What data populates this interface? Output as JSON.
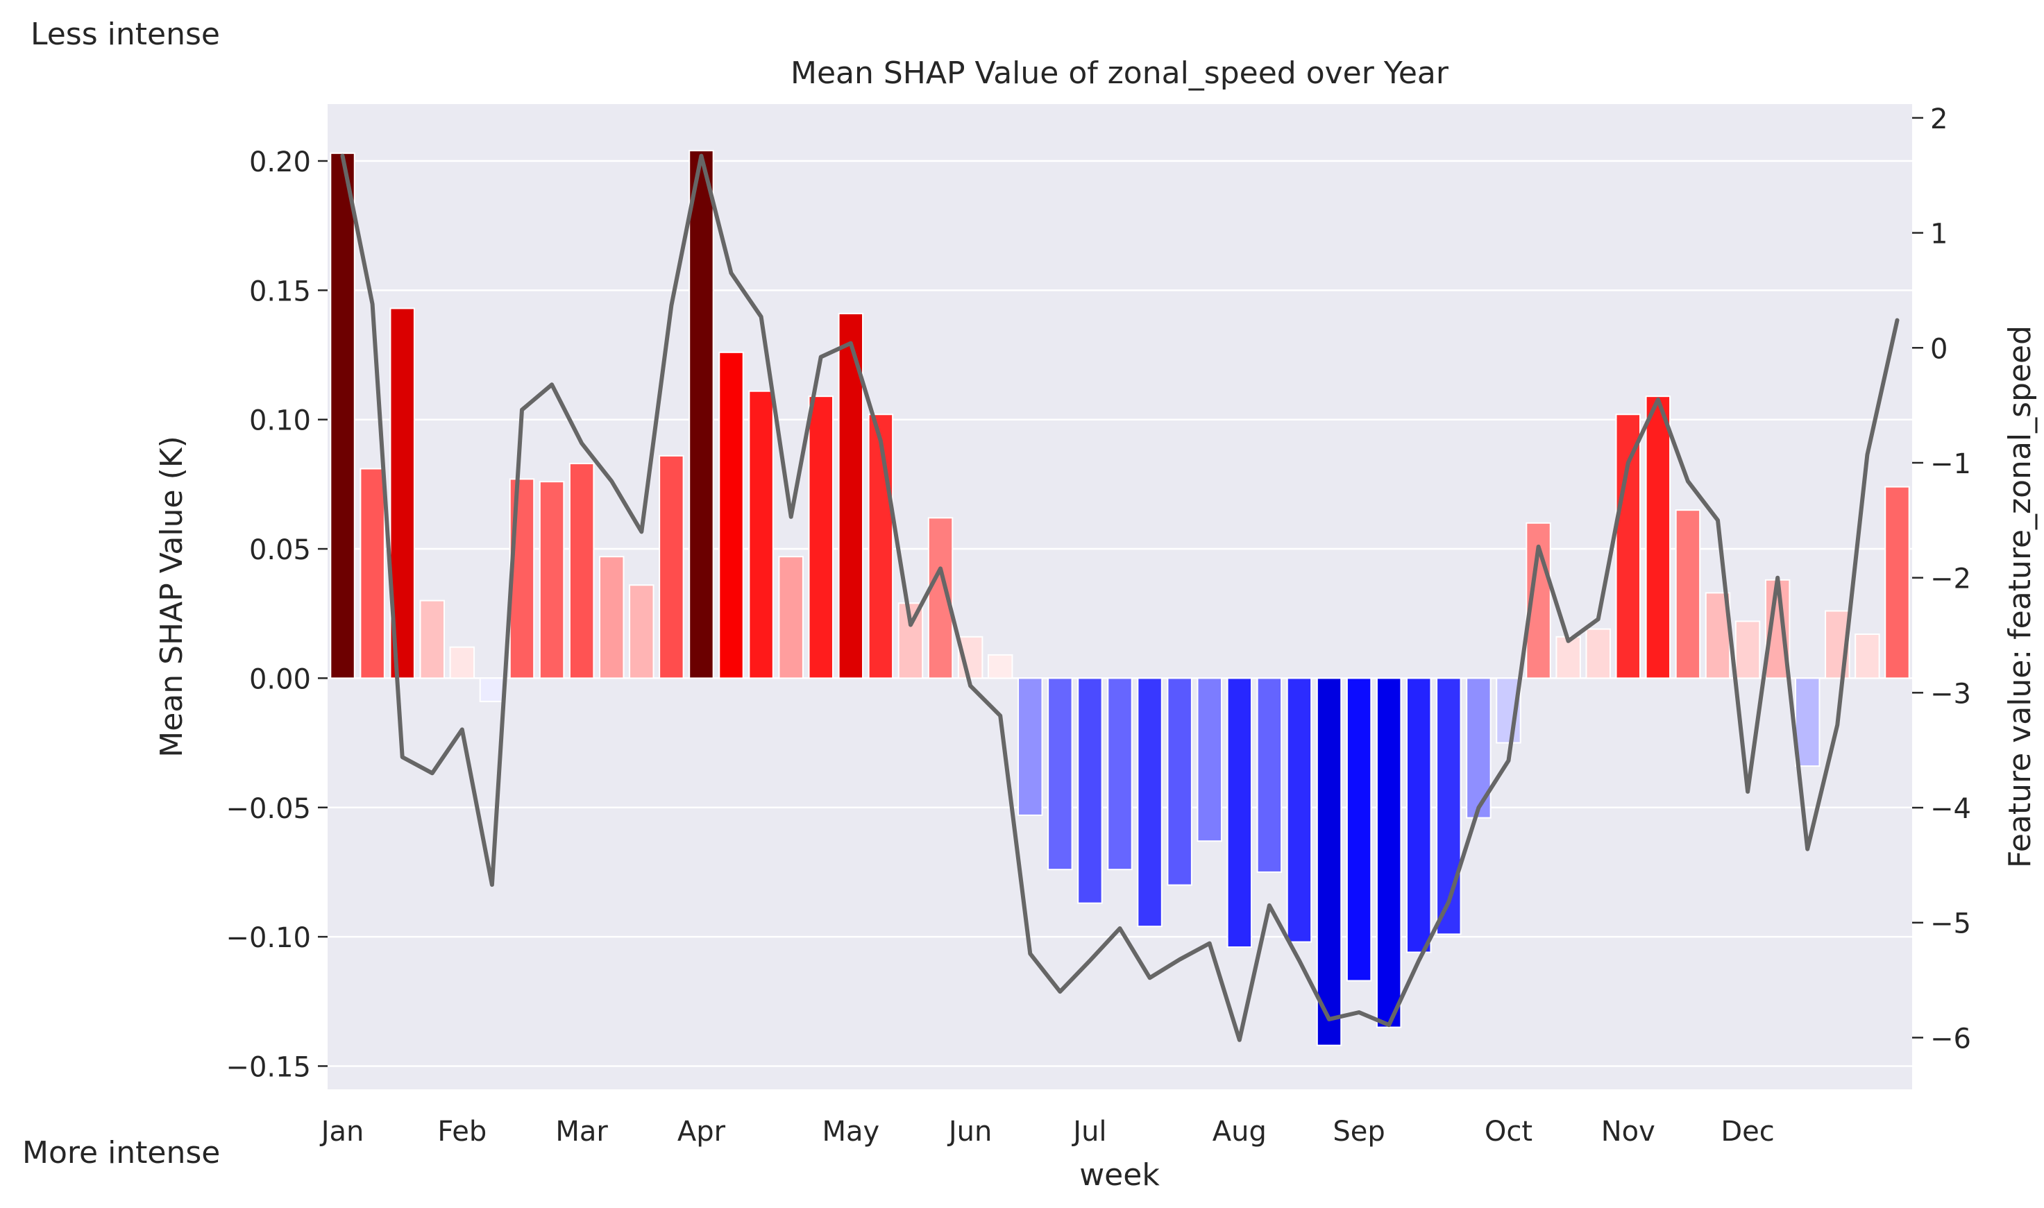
{
  "corner_labels": {
    "top": "Less intense",
    "bottom": "More intense"
  },
  "chart_data": {
    "type": "bar",
    "title": "Mean SHAP Value of zonal_speed over Year",
    "xlabel": "week",
    "ylabel": "Mean SHAP Value (K)",
    "y2label": "Feature value: feature_zonal_speed",
    "ylim": [
      -0.159,
      0.222
    ],
    "y2lim": [
      -6.45,
      2.12
    ],
    "yticks": [
      0.2,
      0.15,
      0.1,
      0.05,
      0.0,
      -0.05,
      -0.1,
      -0.15
    ],
    "ytick_labels": [
      "0.20",
      "0.15",
      "0.10",
      "0.05",
      "0.00",
      "−0.05",
      "−0.10",
      "−0.15"
    ],
    "y2ticks": [
      2,
      1,
      0,
      -1,
      -2,
      -3,
      -4,
      -5,
      -6
    ],
    "y2tick_labels": [
      "2",
      "1",
      "0",
      "−1",
      "−2",
      "−3",
      "−4",
      "−5",
      "−6"
    ],
    "month_labels": [
      {
        "label": "Jan",
        "week": 1
      },
      {
        "label": "Feb",
        "week": 5
      },
      {
        "label": "Mar",
        "week": 9
      },
      {
        "label": "Apr",
        "week": 13
      },
      {
        "label": "May",
        "week": 18
      },
      {
        "label": "Jun",
        "week": 22
      },
      {
        "label": "Jul",
        "week": 26
      },
      {
        "label": "Aug",
        "week": 31
      },
      {
        "label": "Sep",
        "week": 35
      },
      {
        "label": "Oct",
        "week": 40
      },
      {
        "label": "Nov",
        "week": 44
      },
      {
        "label": "Dec",
        "week": 48
      }
    ],
    "grid": true,
    "weeks": [
      1,
      2,
      3,
      4,
      5,
      6,
      7,
      8,
      9,
      10,
      11,
      12,
      13,
      14,
      15,
      16,
      17,
      18,
      19,
      20,
      21,
      22,
      23,
      24,
      25,
      26,
      27,
      28,
      29,
      30,
      31,
      32,
      33,
      34,
      35,
      36,
      37,
      38,
      39,
      40,
      41,
      42,
      43,
      44,
      45,
      46,
      47,
      48,
      49,
      50,
      51,
      52,
      53
    ],
    "series": [
      {
        "kind": "bar",
        "values": [
          0.203,
          0.081,
          0.143,
          0.03,
          0.012,
          -0.009,
          0.077,
          0.076,
          0.083,
          0.047,
          0.036,
          0.086,
          0.204,
          0.126,
          0.111,
          0.047,
          0.109,
          0.141,
          0.102,
          0.029,
          0.062,
          0.016,
          0.009,
          -0.053,
          -0.074,
          -0.087,
          -0.074,
          -0.096,
          -0.08,
          -0.063,
          -0.104,
          -0.075,
          -0.102,
          -0.142,
          -0.117,
          -0.135,
          -0.106,
          -0.099,
          -0.054,
          -0.025,
          0.06,
          0.016,
          0.019,
          0.102,
          0.109,
          0.065,
          0.033,
          0.022,
          0.038,
          -0.034,
          0.026,
          0.017,
          0.074
        ]
      },
      {
        "kind": "line",
        "axis": "right",
        "color": "#666666",
        "values": [
          1.67,
          0.38,
          -3.56,
          -3.7,
          -3.32,
          -4.67,
          -0.54,
          -0.32,
          -0.83,
          -1.16,
          -1.6,
          0.37,
          1.67,
          0.65,
          0.27,
          -1.47,
          -0.08,
          0.04,
          -0.81,
          -2.41,
          -1.92,
          -2.94,
          -3.2,
          -5.27,
          -5.6,
          -5.33,
          -5.05,
          -5.48,
          -5.32,
          -5.18,
          -6.02,
          -4.85,
          -5.33,
          -5.84,
          -5.78,
          -5.89,
          -5.33,
          -4.82,
          -4.0,
          -3.59,
          -1.73,
          -2.55,
          -2.36,
          -1.0,
          -0.45,
          -1.16,
          -1.5,
          -3.86,
          -2.0,
          -4.36,
          -3.28,
          -0.93,
          0.24
        ]
      }
    ],
    "colors": {
      "background": "#eaeaf2",
      "grid": "#ffffff",
      "positive": "#ff0000",
      "negative": "#0000ff",
      "line": "#666666"
    }
  }
}
